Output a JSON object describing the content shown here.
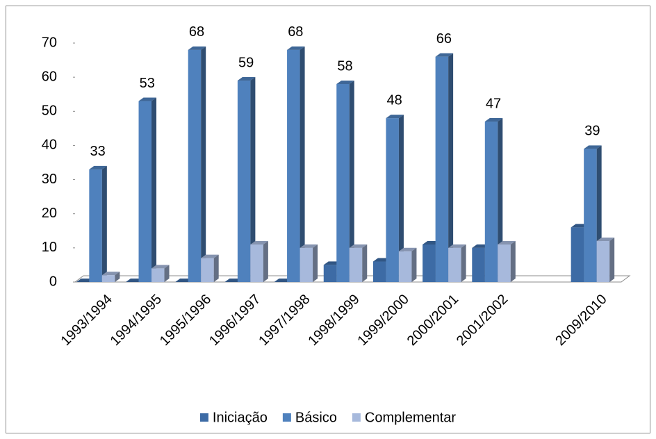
{
  "chart_data": {
    "type": "bar3d",
    "categories": [
      "1993/1994",
      "1994/1995",
      "1995/1996",
      "1996/1997",
      "1997/1998",
      "1998/1999",
      "1999/2000",
      "2000/2001",
      "2001/2002",
      null,
      "2009/2010"
    ],
    "series": [
      {
        "name": "Iniciação",
        "color": "#3d6ba5",
        "values": [
          0,
          0,
          0,
          0,
          0,
          5,
          6,
          11,
          10,
          null,
          16
        ]
      },
      {
        "name": "Básico",
        "color": "#4f81bd",
        "values": [
          33,
          53,
          68,
          59,
          68,
          58,
          48,
          66,
          47,
          null,
          39
        ],
        "data_labels": true
      },
      {
        "name": "Complementar",
        "color": "#a7b9dc",
        "values": [
          2,
          4,
          7,
          11,
          10,
          10,
          9,
          10,
          11,
          null,
          12
        ]
      }
    ],
    "ylim": [
      0,
      70
    ],
    "yticks": [
      0,
      10,
      20,
      30,
      40,
      50,
      60,
      70
    ],
    "legend": "bottom"
  }
}
